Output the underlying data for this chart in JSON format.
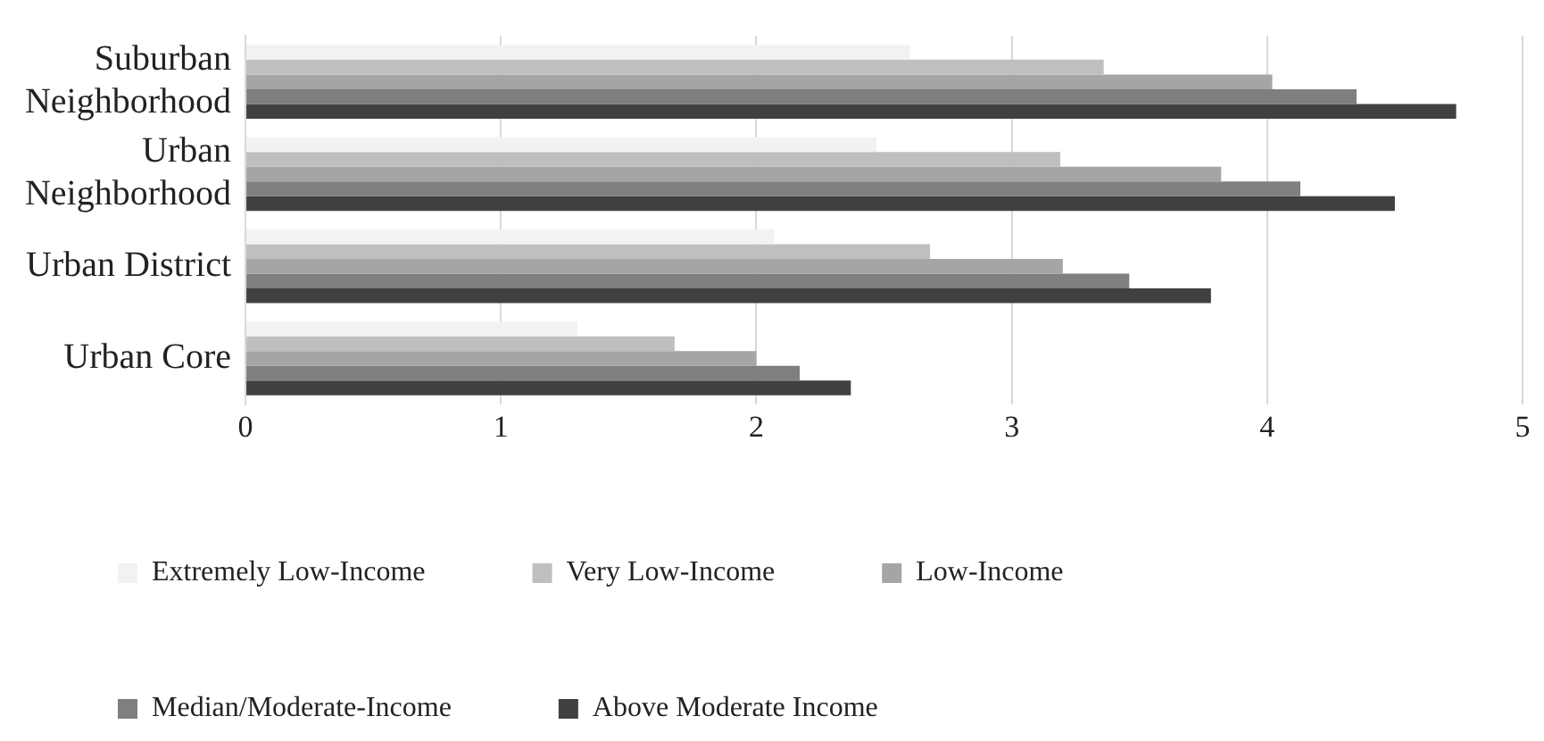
{
  "chart_data": {
    "type": "bar",
    "orientation": "horizontal",
    "categories": [
      "Suburban Neighborhood",
      "Urban Neighborhood",
      "Urban District",
      "Urban Core"
    ],
    "series": [
      {
        "name": "Extremely Low-Income",
        "color": "#f2f2f2",
        "values": [
          2.6,
          2.47,
          2.07,
          1.3
        ]
      },
      {
        "name": "Very Low-Income",
        "color": "#bfbfbf",
        "values": [
          3.36,
          3.19,
          2.68,
          1.68
        ]
      },
      {
        "name": "Low-Income",
        "color": "#a5a5a5",
        "values": [
          4.02,
          3.82,
          3.2,
          2.0
        ]
      },
      {
        "name": "Median/Moderate-Income",
        "color": "#7f7f7f",
        "values": [
          4.35,
          4.13,
          3.46,
          2.17
        ]
      },
      {
        "name": "Above Moderate Income",
        "color": "#404040",
        "values": [
          4.74,
          4.5,
          3.78,
          2.37
        ]
      }
    ],
    "xlim": [
      0,
      5
    ],
    "xticks": [
      0,
      1,
      2,
      3,
      4,
      5
    ],
    "grid": "x",
    "legend": "bottom"
  }
}
